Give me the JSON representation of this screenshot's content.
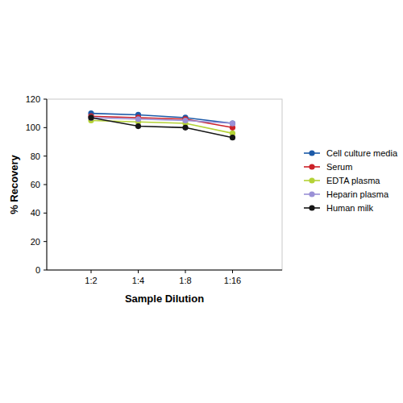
{
  "chart_data": {
    "type": "line",
    "x_label": "Sample Dilution",
    "y_label": "% Recovery",
    "categories": [
      "1:2",
      "1:4",
      "1:8",
      "1:16"
    ],
    "series": [
      {
        "name": "Cell culture media",
        "color": "#1c5aa8",
        "values": [
          110,
          109,
          107,
          103
        ]
      },
      {
        "name": "Serum",
        "color": "#cc2229",
        "values": [
          108,
          107,
          106,
          100
        ]
      },
      {
        "name": "EDTA plasma",
        "color": "#b4d236",
        "values": [
          105,
          104,
          103,
          96
        ]
      },
      {
        "name": "Heparin plasma",
        "color": "#9a90d6",
        "values": [
          107,
          106,
          105,
          103
        ]
      },
      {
        "name": "Human milk",
        "color": "#161616",
        "values": [
          107,
          101,
          100,
          93
        ]
      }
    ],
    "ylim": [
      0,
      120
    ],
    "yticks": [
      0,
      20,
      40,
      60,
      80,
      100,
      120
    ],
    "grid": false,
    "legend": "right",
    "marker": "circle"
  }
}
